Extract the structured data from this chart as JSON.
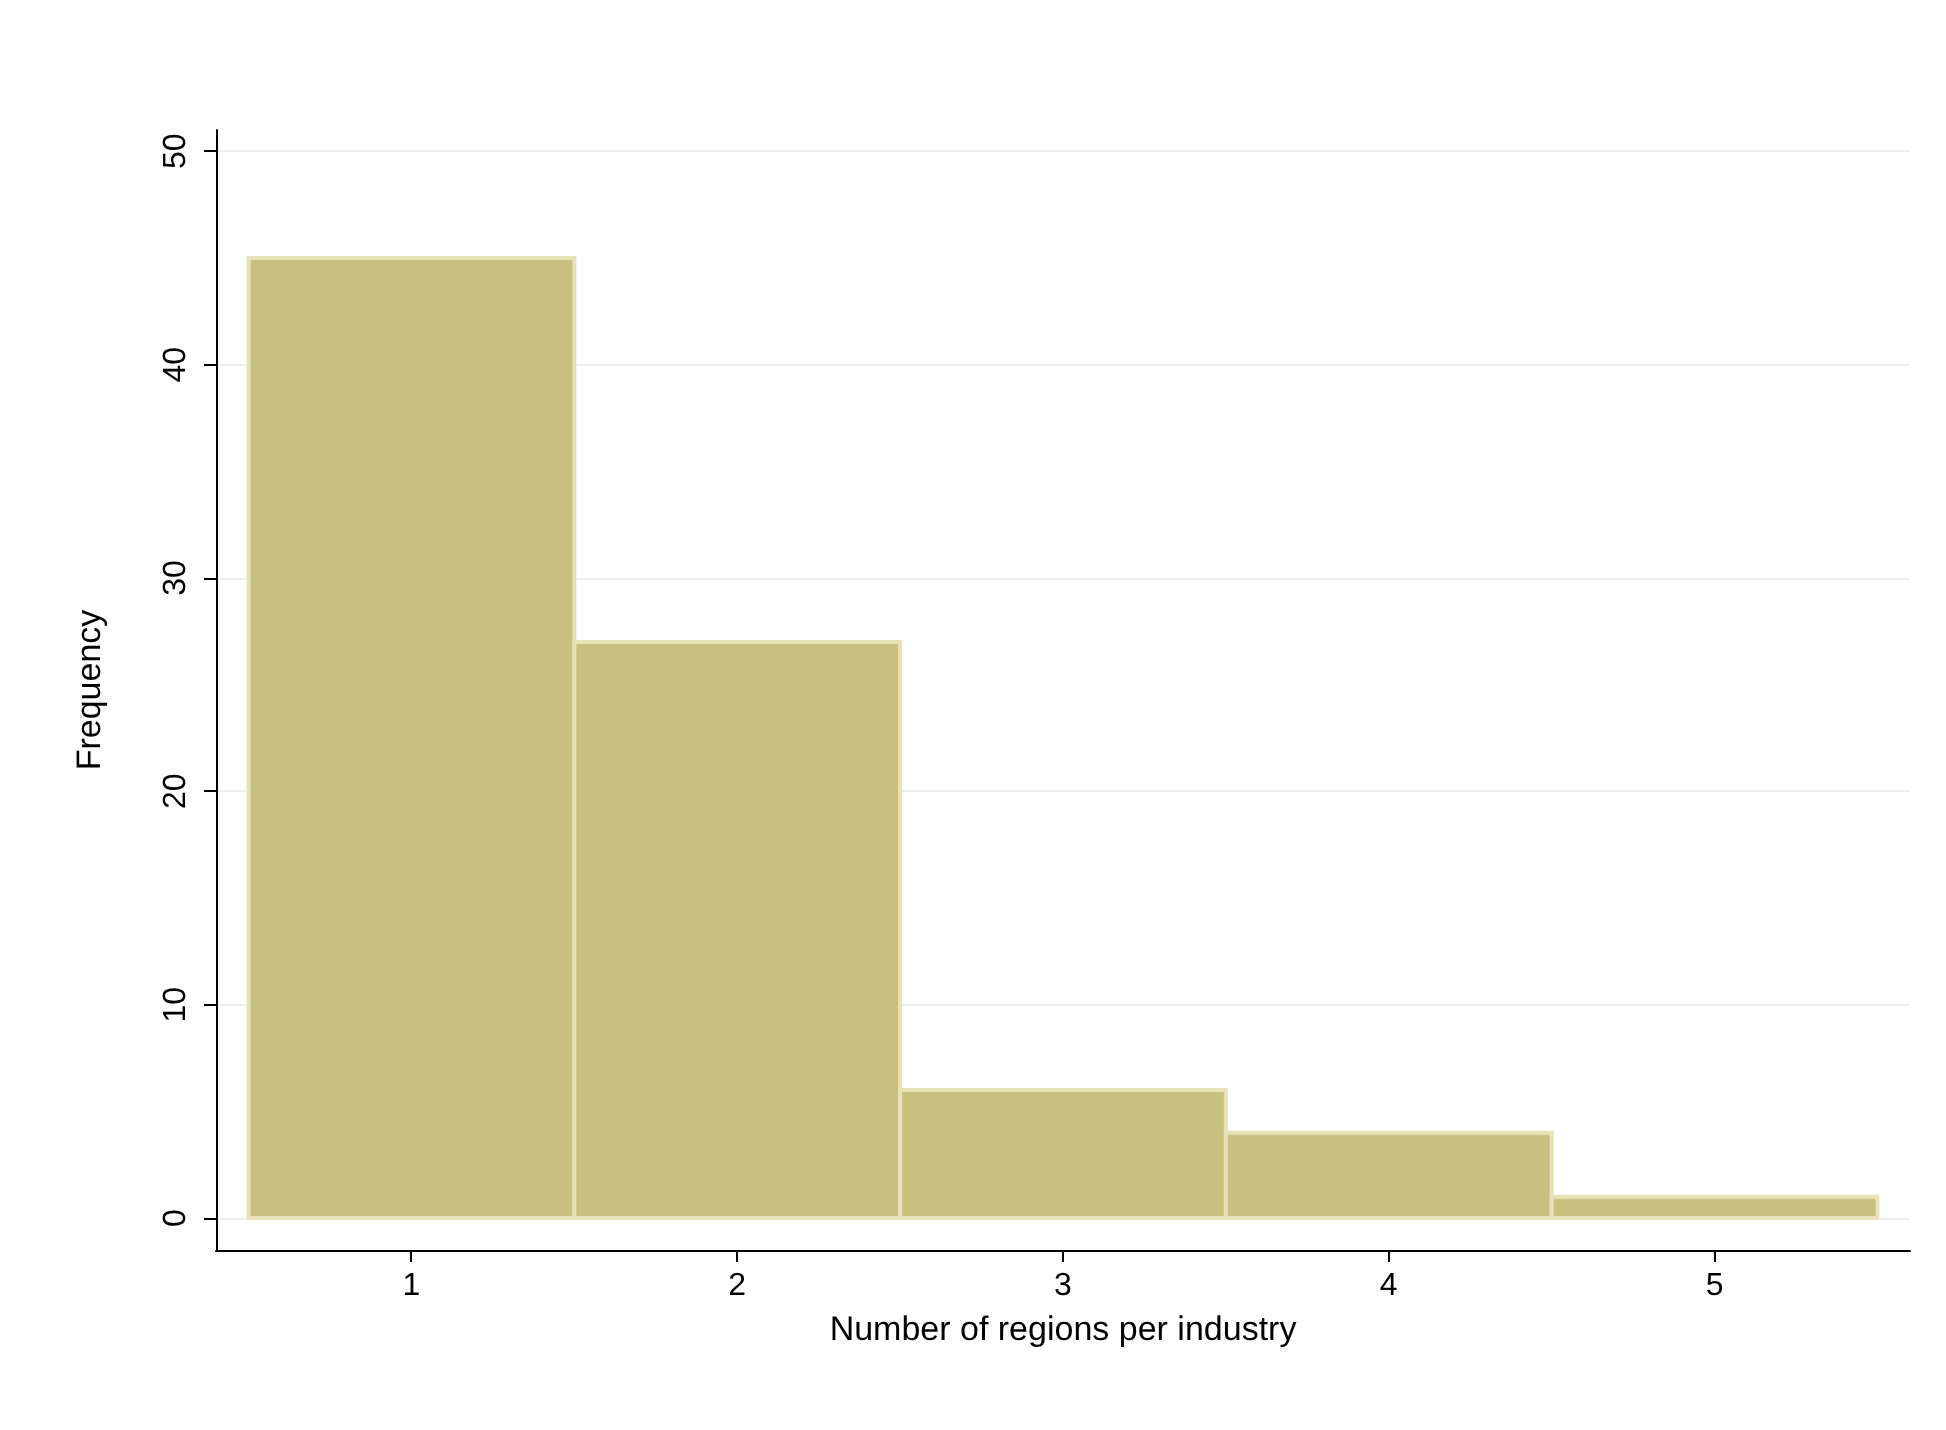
{
  "chart_data": {
    "type": "histogram",
    "xlabel": "Number of regions per industry",
    "ylabel": "Frequency",
    "bins": [
      0.5,
      1.5,
      2.5,
      3.5,
      4.5,
      5.5
    ],
    "values": [
      45,
      27,
      6,
      4,
      1
    ],
    "color": "#c8c07f",
    "xlim": [
      0.4,
      5.6
    ],
    "xticks": [
      1,
      2,
      3,
      4,
      5
    ],
    "ylim": [
      -1.5,
      51
    ],
    "yticks": [
      0,
      10,
      20,
      30,
      40,
      50
    ],
    "grid": "y"
  }
}
